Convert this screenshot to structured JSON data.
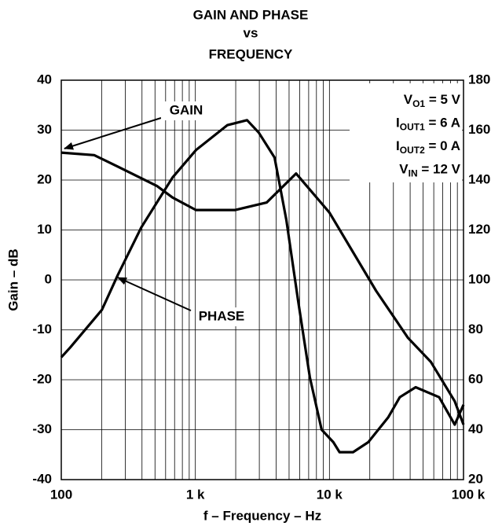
{
  "chart_data": {
    "type": "line",
    "title": [
      "GAIN AND PHASE",
      "vs",
      "FREQUENCY"
    ],
    "xlabel": "f – Frequency – Hz",
    "ylabel": "Gain – dB",
    "xscale": "log",
    "grid": true,
    "xlim": [
      100,
      100000
    ],
    "xticks": [
      100,
      {
        "value": 1000,
        "label": "1 k"
      },
      {
        "value": 10000,
        "label": "10 k"
      },
      {
        "value": 100000,
        "label": "100 k"
      }
    ],
    "xminorticks": [
      200,
      300,
      400,
      500,
      600,
      700,
      800,
      900,
      2000,
      3000,
      4000,
      5000,
      6000,
      7000,
      8000,
      9000,
      20000,
      30000,
      40000,
      50000,
      60000,
      70000,
      80000,
      90000
    ],
    "ylim": [
      -40,
      40
    ],
    "yticks": [
      -40,
      -30,
      -20,
      -10,
      0,
      10,
      20,
      30,
      40
    ],
    "y2lim": [
      20,
      180
    ],
    "y2ticks": [
      20,
      40,
      60,
      80,
      100,
      120,
      140,
      160,
      180
    ],
    "series": [
      {
        "name": "GAIN",
        "color": "#000000",
        "x": [
          100,
          176,
          264,
          517,
          676,
          1010,
          1985,
          3400,
          5640,
          10000,
          22300,
          38500,
          57000,
          86000,
          100000
        ],
        "values": [
          25.5,
          25,
          22.7,
          18.8,
          16.5,
          14,
          14,
          15.5,
          21.3,
          13.5,
          -2.2,
          -11.6,
          -16.4,
          -24.3,
          -29
        ]
      },
      {
        "name": "PHASE",
        "color": "#000000",
        "axis": "y2",
        "x": [
          100,
          117,
          201,
          264,
          395,
          676,
          1010,
          1730,
          2430,
          2970,
          3900,
          4770,
          5830,
          7140,
          8740,
          10700,
          11900,
          15000,
          19500,
          27500,
          33500,
          44000,
          65800,
          86000,
          100000
        ],
        "values": [
          69,
          73,
          88,
          102,
          121,
          141,
          152,
          162,
          164,
          159,
          149,
          124,
          92,
          61,
          40,
          35,
          31,
          31,
          35,
          45,
          53,
          57,
          53,
          42,
          50
        ]
      }
    ],
    "conditions": [
      {
        "symbol": "V",
        "subscript": "O1",
        "text": " = 5 V"
      },
      {
        "symbol": "I",
        "subscript": "OUT1",
        "text": " = 6 A"
      },
      {
        "symbol": "I",
        "subscript": "OUT2",
        "text": " = 0 A"
      },
      {
        "symbol": "V",
        "subscript": "IN",
        "text": " = 12 V"
      }
    ]
  }
}
